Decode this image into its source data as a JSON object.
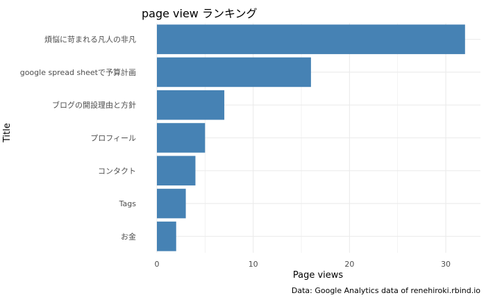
{
  "chart_data": {
    "type": "bar",
    "orientation": "horizontal",
    "title": "page view ランキング",
    "xlabel": "Page views",
    "ylabel": "Title",
    "caption": "Data: Google Analytics data of renehiroki.rbind.io",
    "categories": [
      "煩悩に苛まれる凡人の非凡",
      "google spread sheetで予算計画",
      "ブログの開設理由と方針",
      "プロフィール",
      "コンタクト",
      "Tags",
      "お金"
    ],
    "values": [
      32,
      16,
      7,
      5,
      4,
      3,
      2
    ],
    "xlim": [
      0,
      33.6
    ],
    "xticks": [
      0,
      10,
      20,
      30
    ],
    "grid": true,
    "bar_color": "#4682B4",
    "grid_color": "#ebebeb"
  }
}
